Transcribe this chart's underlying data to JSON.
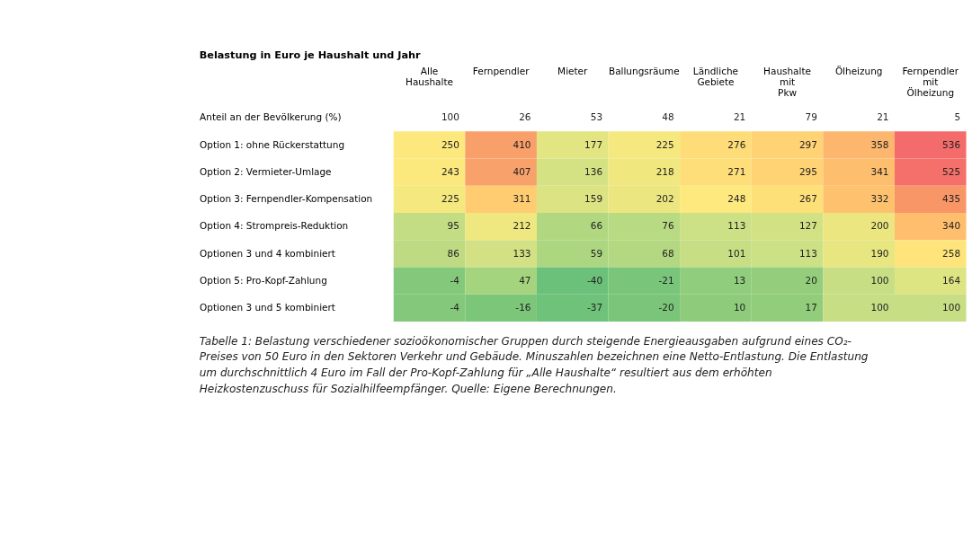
{
  "chart_data": {
    "type": "heatmap",
    "title": "Belastung in Euro je Haushalt und Jahr",
    "categories": [
      "Alle Haushalte",
      "Fernpendler",
      "Mieter",
      "Ballungsräume",
      "Ländliche Gebiete",
      "Haushalte mit Pkw",
      "Ölheizung",
      "Fernpendler mit Ölheizung"
    ],
    "y_categories": [
      "Anteil an der Bevölkerung (%)",
      "Option 1: ohne Rückerstattung",
      "Option 2: Vermieter-Umlage",
      "Option 3: Fernpendler-Kompensation",
      "Option 4: Strompreis-Reduktion",
      "Optionen 3 und 4 kombiniert",
      "Option 5: Pro-Kopf-Zahlung",
      "Optionen 3 und 5 kombiniert"
    ],
    "cells": [
      [
        null,
        null,
        null,
        null,
        null,
        null,
        null,
        null
      ],
      [
        250,
        410,
        177,
        225,
        276,
        297,
        358,
        536
      ],
      [
        243,
        407,
        136,
        218,
        271,
        295,
        341,
        525
      ],
      [
        225,
        311,
        159,
        202,
        248,
        267,
        332,
        435
      ],
      [
        95,
        212,
        66,
        76,
        113,
        127,
        200,
        340
      ],
      [
        86,
        133,
        59,
        68,
        101,
        113,
        190,
        258
      ],
      [
        -4,
        47,
        -40,
        -21,
        13,
        20,
        100,
        164
      ],
      [
        -4,
        -16,
        -37,
        -20,
        10,
        17,
        100,
        100
      ]
    ],
    "cell_labels": [
      [
        "100",
        "26",
        "53",
        "48",
        "21",
        "79",
        "21",
        "5"
      ],
      [
        "250",
        "410",
        "177",
        "225",
        "276",
        "297",
        "358",
        "536"
      ],
      [
        "243",
        "407",
        "136",
        "218",
        "271",
        "295",
        "341",
        "525"
      ],
      [
        "225",
        "311",
        "159",
        "202",
        "248",
        "267",
        "332",
        "435"
      ],
      [
        "95",
        "212",
        "66",
        "76",
        "113",
        "127",
        "200",
        "340"
      ],
      [
        "86",
        "133",
        "59",
        "68",
        "101",
        "113",
        "190",
        "258"
      ],
      [
        "-4",
        "47",
        "-40",
        "-21",
        "13",
        "20",
        "100",
        "164"
      ],
      [
        "-4",
        "-16",
        "-37",
        "-20",
        "10",
        "17",
        "100",
        "100"
      ]
    ],
    "annotations": [
      "Tabelle 1: Belastung verschiedener sozioökonomischer Gruppen durch steigende Energieausgaben aufgrund eines CO₂-Preises von 50 Euro in den Sektoren Verkehr und Gebäude. Minuszahlen bezeichnen eine Netto-Entlastung. Die Entlastung um durchschnittlich 4 Euro im Fall der Pro-Kopf-Zahlung für „Alle Haushalte“ resultiert aus dem erhöhten Heizkostenzuschuss für Sozialhilfeempfänger. Quelle: Eigene Berechnungen."
    ]
  }
}
